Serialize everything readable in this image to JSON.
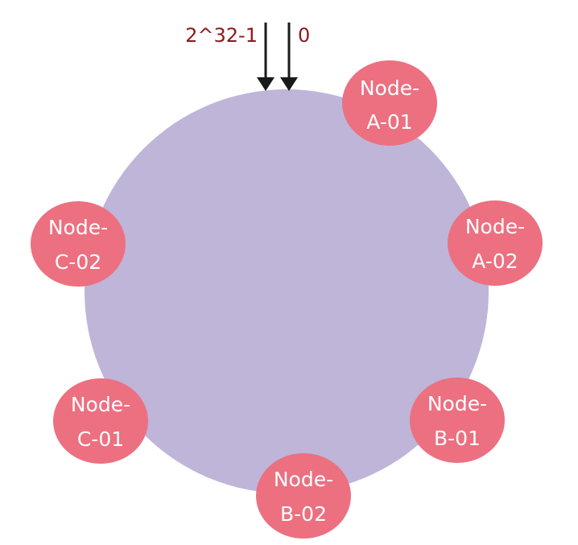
{
  "colors": {
    "ring": "#beb5d8",
    "node": "#ec7080",
    "node_text": "#ffffff",
    "marker_text": "#8b1a1a",
    "arrow": "#1a1a1a"
  },
  "markers": {
    "max_label": "2^32-1",
    "zero_label": "0"
  },
  "nodes": [
    {
      "id": "A-01",
      "line1": "Node-",
      "line2": "A-01"
    },
    {
      "id": "A-02",
      "line1": "Node-",
      "line2": "A-02"
    },
    {
      "id": "B-01",
      "line1": "Node-",
      "line2": "B-01"
    },
    {
      "id": "B-02",
      "line1": "Node-",
      "line2": "B-02"
    },
    {
      "id": "C-01",
      "line1": "Node-",
      "line2": "C-01"
    },
    {
      "id": "C-02",
      "line1": "Node-",
      "line2": "C-02"
    }
  ]
}
